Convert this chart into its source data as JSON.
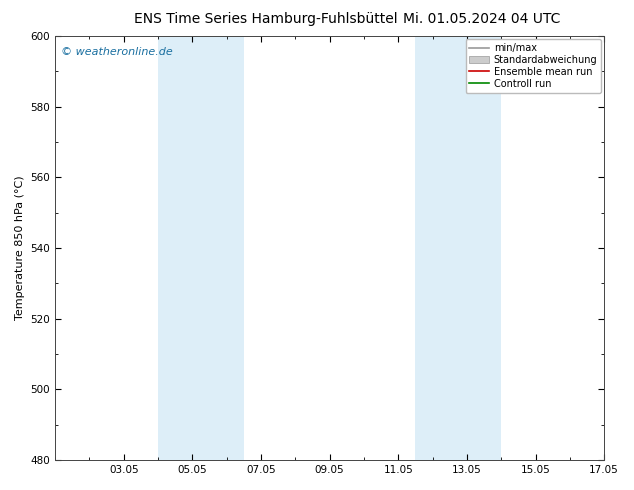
{
  "title_left": "ENS Time Series Hamburg-Fuhlsbüttel",
  "title_right": "Mi. 01.05.2024 04 UTC",
  "ylabel": "Temperature 850 hPa (°C)",
  "ylim": [
    480,
    600
  ],
  "yticks": [
    480,
    500,
    520,
    540,
    560,
    580,
    600
  ],
  "xlim": [
    0,
    16
  ],
  "xtick_labels": [
    "03.05",
    "05.05",
    "07.05",
    "09.05",
    "11.05",
    "13.05",
    "15.05",
    "17.05"
  ],
  "xtick_positions": [
    2,
    4,
    6,
    8,
    10,
    12,
    14,
    16
  ],
  "shaded_bands": [
    {
      "x_start": 3.0,
      "x_end": 5.5,
      "color": "#ddeef8"
    },
    {
      "x_start": 10.5,
      "x_end": 13.0,
      "color": "#ddeef8"
    }
  ],
  "watermark": "© weatheronline.de",
  "watermark_color": "#1a6fa0",
  "legend_labels": [
    "min/max",
    "Standardabweichung",
    "Ensemble mean run",
    "Controll run"
  ],
  "legend_colors": [
    "#aaaaaa",
    "#cccccc",
    "#cc0000",
    "#008800"
  ],
  "bg_color": "#ffffff",
  "plot_bg_color": "#ffffff",
  "title_fontsize": 10,
  "tick_fontsize": 7.5,
  "ylabel_fontsize": 8,
  "watermark_fontsize": 8
}
